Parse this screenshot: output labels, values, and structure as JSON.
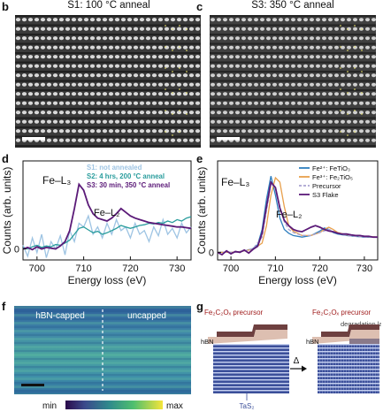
{
  "panels": {
    "b": {
      "letter": "b",
      "title": "S1: 100 °C anneal"
    },
    "c": {
      "letter": "c",
      "title": "S3: 350 °C anneal"
    },
    "d": {
      "letter": "d"
    },
    "e": {
      "letter": "e"
    },
    "f": {
      "letter": "f",
      "label_left": "hBN-capped",
      "label_right": "uncapped",
      "cbar_min": "min",
      "cbar_max": "max"
    },
    "g": {
      "letter": "g",
      "precursor_left": "Fe₂C₂Oₓ precursor",
      "precursor_right": "Fe₂C₂Oₓ precursor",
      "hbn_left": "hBN",
      "hbn_right": "hBN",
      "degradation": "degradation layer",
      "delta": "Δ",
      "substrate": "TaS₂"
    }
  },
  "chart_data": [
    {
      "panel": "d",
      "type": "line",
      "xlabel": "Energy loss (eV)",
      "ylabel": "Counts (arb. units)",
      "xlim": [
        697,
        733
      ],
      "ylim": [
        -0.15,
        1.2
      ],
      "xticks": [
        "700",
        "710",
        "720",
        "730"
      ],
      "yticks": [
        "0"
      ],
      "annotations": [
        "Fe–L₃",
        "Fe–L₂"
      ],
      "legend_position": "top-right",
      "series": [
        {
          "name": "S1: not annealed",
          "color": "#9ec4e3",
          "x": [
            697,
            698,
            699,
            700,
            701,
            702,
            703,
            704,
            705,
            706,
            707,
            708,
            709,
            710,
            711,
            712,
            713,
            714,
            715,
            716,
            717,
            718,
            719,
            720,
            721,
            722,
            723,
            724,
            725,
            726,
            727,
            728,
            729,
            730,
            731,
            732,
            733
          ],
          "y": [
            0.05,
            -0.1,
            0.15,
            -0.05,
            0.2,
            -0.12,
            0.1,
            0.0,
            0.18,
            -0.08,
            0.25,
            0.1,
            0.35,
            0.3,
            0.45,
            0.2,
            0.3,
            0.15,
            0.35,
            0.2,
            0.4,
            0.25,
            0.3,
            0.15,
            0.35,
            0.2,
            0.25,
            0.1,
            0.3,
            0.18,
            0.4,
            0.2,
            0.28,
            0.15,
            0.35,
            0.22,
            0.3
          ]
        },
        {
          "name": "S2: 4 hrs, 200 °C anneal",
          "color": "#2a9d9d",
          "x": [
            697,
            698,
            699,
            700,
            701,
            702,
            703,
            704,
            705,
            706,
            707,
            708,
            709,
            710,
            711,
            712,
            713,
            714,
            715,
            716,
            717,
            718,
            719,
            720,
            721,
            722,
            723,
            724,
            725,
            726,
            727,
            728,
            729,
            730,
            731,
            732,
            733
          ],
          "y": [
            0.02,
            0.0,
            0.03,
            0.05,
            0.02,
            0.04,
            0.03,
            0.06,
            0.05,
            0.08,
            0.12,
            0.2,
            0.28,
            0.3,
            0.26,
            0.22,
            0.24,
            0.2,
            0.22,
            0.25,
            0.28,
            0.32,
            0.3,
            0.28,
            0.3,
            0.32,
            0.33,
            0.35,
            0.34,
            0.36,
            0.35,
            0.38,
            0.36,
            0.4,
            0.38,
            0.42,
            0.44
          ]
        },
        {
          "name": "S3: 30 min, 350 °C anneal",
          "color": "#5b1a78",
          "x": [
            697,
            698,
            699,
            700,
            701,
            702,
            703,
            704,
            705,
            706,
            707,
            708,
            709,
            710,
            711,
            712,
            713,
            714,
            715,
            716,
            717,
            718,
            719,
            720,
            721,
            722,
            723,
            724,
            725,
            726,
            727,
            728,
            729,
            730,
            731,
            732,
            733
          ],
          "y": [
            0.0,
            0.02,
            -0.01,
            0.03,
            0.0,
            0.02,
            0.01,
            0.0,
            0.04,
            0.1,
            0.25,
            0.55,
            0.88,
            0.8,
            0.6,
            0.48,
            0.42,
            0.4,
            0.38,
            0.42,
            0.48,
            0.55,
            0.5,
            0.45,
            0.42,
            0.4,
            0.38,
            0.36,
            0.35,
            0.34,
            0.33,
            0.32,
            0.31,
            0.3,
            0.3,
            0.29,
            0.28
          ]
        }
      ]
    },
    {
      "panel": "e",
      "type": "line",
      "xlabel": "Energy loss (eV)",
      "ylabel": "Counts (arb. units)",
      "xlim": [
        697,
        733
      ],
      "ylim": [
        -0.1,
        1.2
      ],
      "xticks": [
        "700",
        "710",
        "720",
        "730"
      ],
      "yticks": [
        "0"
      ],
      "annotations": [
        "Fe–L₃",
        "Fe–L₂"
      ],
      "legend_position": "top-right",
      "series": [
        {
          "name": "Fe²⁺: FeTiO₃",
          "color": "#2f7fbf",
          "x": [
            697,
            699,
            701,
            703,
            705,
            706,
            707,
            708,
            709,
            710,
            711,
            712,
            713,
            714,
            716,
            718,
            720,
            721,
            722,
            723,
            724,
            726,
            728,
            730,
            733
          ],
          "y": [
            0.0,
            0.0,
            0.0,
            0.02,
            0.05,
            0.1,
            0.3,
            0.7,
            1.0,
            0.75,
            0.45,
            0.3,
            0.25,
            0.22,
            0.2,
            0.22,
            0.28,
            0.32,
            0.3,
            0.26,
            0.24,
            0.22,
            0.21,
            0.2,
            0.2
          ]
        },
        {
          "name": "Fe³⁺: Fe₂TiO₅",
          "color": "#e8a04c",
          "x": [
            697,
            699,
            701,
            703,
            705,
            707,
            708,
            709,
            710,
            711,
            712,
            713,
            714,
            716,
            718,
            720,
            721,
            722,
            723,
            724,
            726,
            728,
            730,
            733
          ],
          "y": [
            0.0,
            0.0,
            0.0,
            0.02,
            0.04,
            0.12,
            0.35,
            0.75,
            0.98,
            0.92,
            0.6,
            0.35,
            0.28,
            0.22,
            0.22,
            0.26,
            0.3,
            0.33,
            0.3,
            0.26,
            0.23,
            0.22,
            0.21,
            0.2
          ]
        },
        {
          "name": "Precursor",
          "color": "#a9a3d1",
          "x": [
            697,
            699,
            701,
            703,
            705,
            707,
            708,
            709,
            710,
            711,
            712,
            713,
            714,
            716,
            718,
            720,
            722,
            724,
            726,
            728,
            730,
            733
          ],
          "y": [
            0.0,
            0.0,
            0.0,
            0.02,
            0.05,
            0.2,
            0.55,
            0.9,
            0.85,
            0.6,
            0.4,
            0.3,
            0.26,
            0.22,
            0.22,
            0.26,
            0.3,
            0.25,
            0.22,
            0.21,
            0.2,
            0.2
          ]
        },
        {
          "name": "S3 Flake",
          "color": "#5b1a78",
          "x": [
            697,
            698,
            699,
            700,
            701,
            702,
            703,
            704,
            705,
            706,
            707,
            708,
            709,
            710,
            711,
            712,
            713,
            714,
            715,
            716,
            717,
            718,
            719,
            720,
            721,
            722,
            723,
            724,
            725,
            726,
            727,
            728,
            729,
            730,
            731,
            732,
            733
          ],
          "y": [
            0.0,
            -0.03,
            0.02,
            -0.02,
            0.01,
            0.0,
            0.03,
            -0.01,
            0.04,
            0.08,
            0.25,
            0.6,
            0.92,
            0.85,
            0.58,
            0.42,
            0.35,
            0.3,
            0.28,
            0.27,
            0.3,
            0.33,
            0.35,
            0.33,
            0.3,
            0.28,
            0.27,
            0.25,
            0.24,
            0.24,
            0.23,
            0.22,
            0.22,
            0.21,
            0.21,
            0.2,
            0.2
          ]
        }
      ]
    }
  ]
}
